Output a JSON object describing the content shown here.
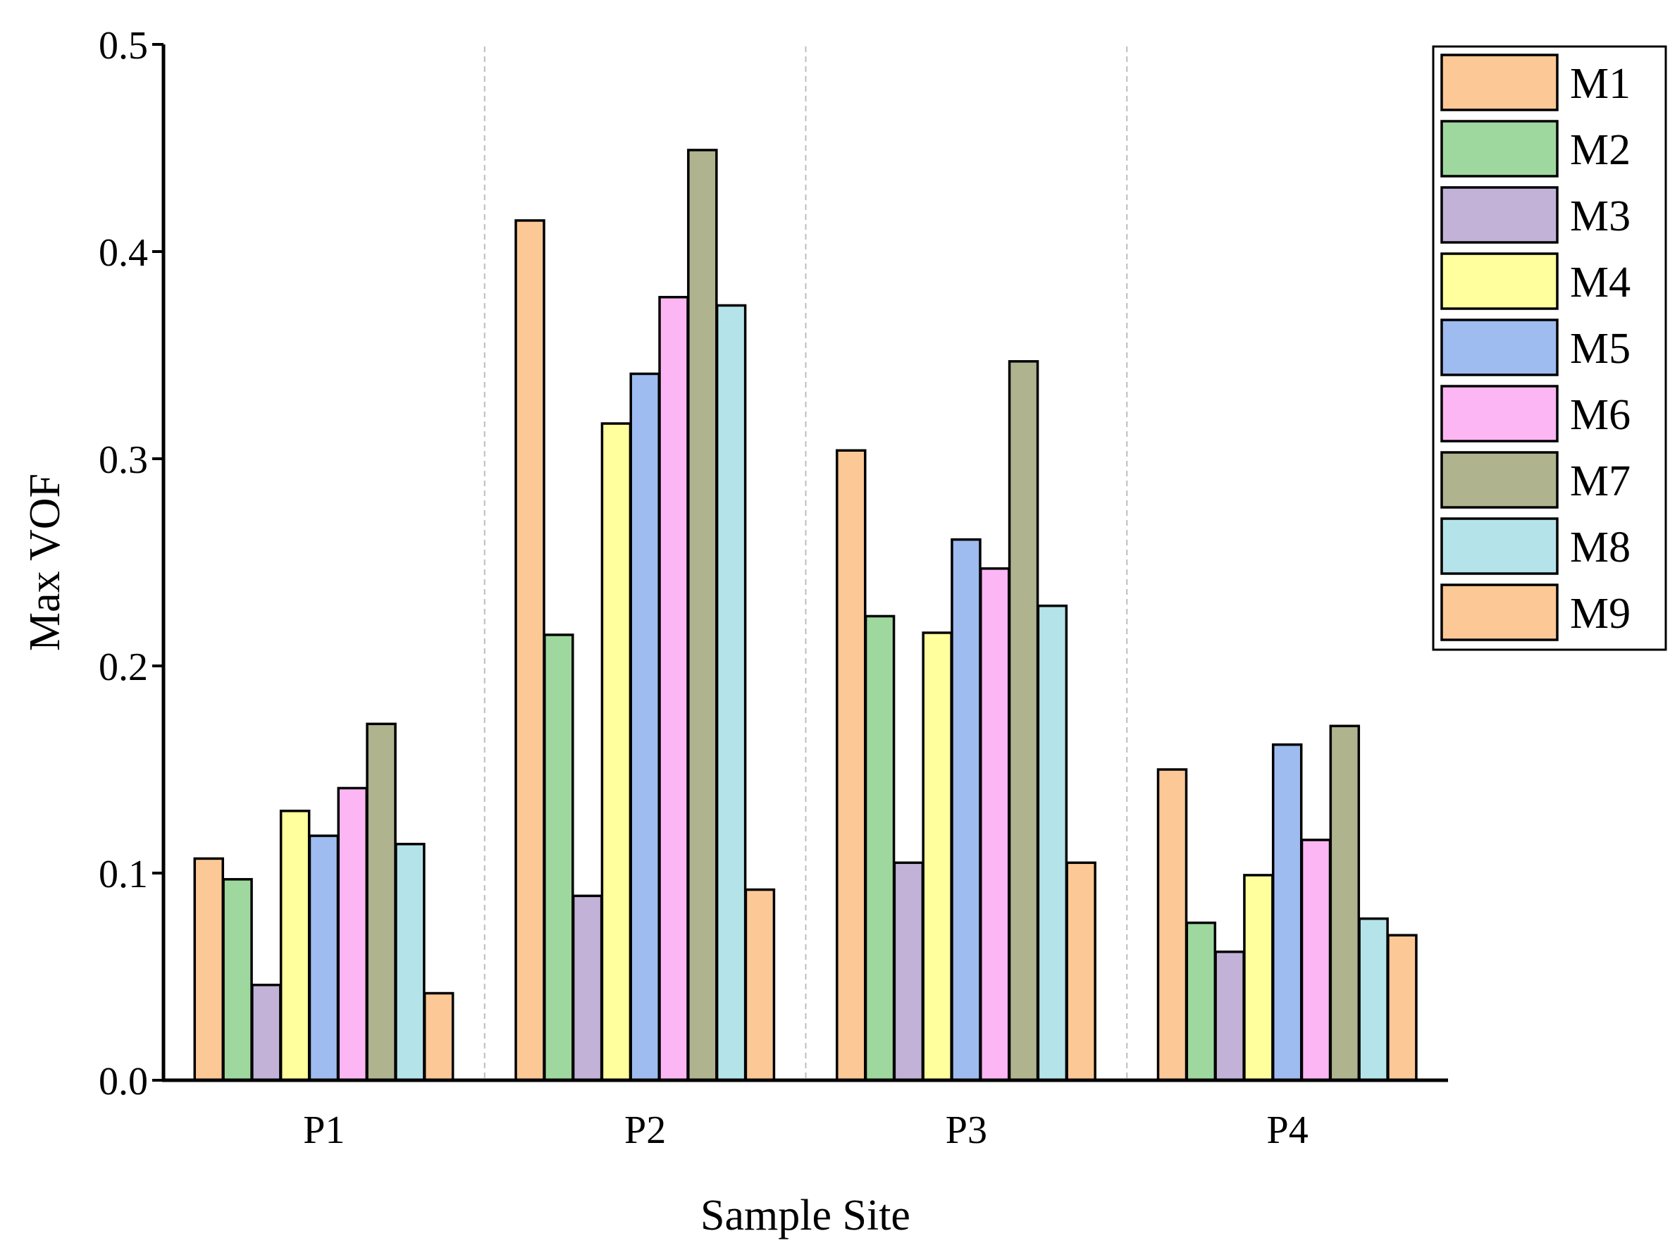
{
  "chart_data": {
    "type": "bar",
    "title": "",
    "xlabel": "Sample Site",
    "ylabel": "Max VOF",
    "ylim": [
      0,
      0.5
    ],
    "yticks": [
      "0.0",
      "0.1",
      "0.2",
      "0.3",
      "0.4",
      "0.5"
    ],
    "categories": [
      "P1",
      "P2",
      "P3",
      "P4"
    ],
    "legend_position": "top-right",
    "grid": "vertical dashed separators between groups",
    "series": [
      {
        "name": "M1",
        "color": "#FCC896",
        "values": [
          0.107,
          0.415,
          0.304,
          0.15
        ]
      },
      {
        "name": "M2",
        "color": "#9ED89E",
        "values": [
          0.097,
          0.215,
          0.224,
          0.076
        ]
      },
      {
        "name": "M3",
        "color": "#C3B2D8",
        "values": [
          0.046,
          0.089,
          0.105,
          0.062
        ]
      },
      {
        "name": "M4",
        "color": "#FFFF9E",
        "values": [
          0.13,
          0.317,
          0.216,
          0.099
        ]
      },
      {
        "name": "M5",
        "color": "#9EBCF0",
        "values": [
          0.118,
          0.341,
          0.261,
          0.162
        ]
      },
      {
        "name": "M6",
        "color": "#FCB6F4",
        "values": [
          0.141,
          0.378,
          0.247,
          0.116
        ]
      },
      {
        "name": "M7",
        "color": "#B0B48E",
        "values": [
          0.172,
          0.449,
          0.347,
          0.171
        ]
      },
      {
        "name": "M8",
        "color": "#B4E4EA",
        "values": [
          0.114,
          0.374,
          0.229,
          0.078
        ]
      },
      {
        "name": "M9",
        "color": "#FCC896",
        "values": [
          0.042,
          0.092,
          0.105,
          0.07
        ]
      }
    ]
  }
}
